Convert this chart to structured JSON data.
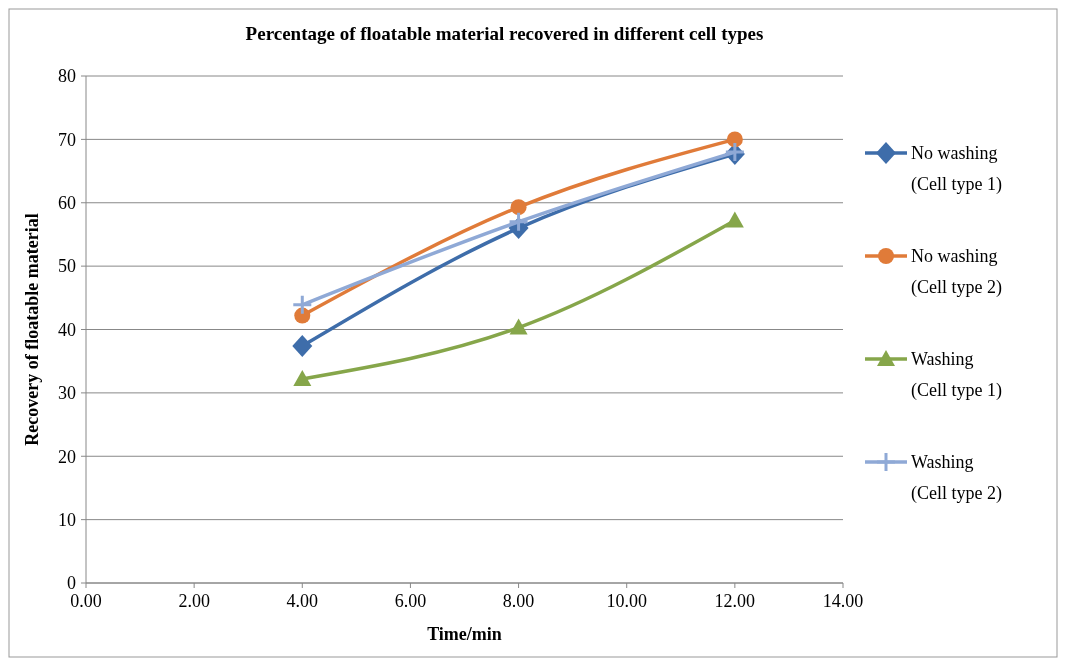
{
  "chart_data": {
    "type": "line",
    "title": "Percentage of floatable material recovered in different cell types",
    "xlabel": "Time/min",
    "ylabel": "Recovery of floatable material",
    "x": [
      4,
      8,
      12
    ],
    "series": [
      {
        "name": "No washing (Cell type 1)",
        "color": "#3e6daa",
        "marker": "diamond",
        "values": [
          37.4,
          56,
          67.7
        ]
      },
      {
        "name": "No washing (Cell type 2)",
        "color": "#e07b39",
        "marker": "circle",
        "values": [
          42.2,
          59.3,
          70
        ]
      },
      {
        "name": "Washing (Cell type 1)",
        "color": "#86a64a",
        "marker": "triangle",
        "values": [
          32.2,
          40.3,
          57.2
        ]
      },
      {
        "name": "Washing (Cell type 2)",
        "color": "#8fa9d6",
        "marker": "cross",
        "values": [
          43.9,
          57,
          68
        ]
      }
    ],
    "xlim": [
      0,
      14
    ],
    "xticks": [
      {
        "value": 0,
        "label": "0.00"
      },
      {
        "value": 2,
        "label": "2.00"
      },
      {
        "value": 4,
        "label": "4.00"
      },
      {
        "value": 6,
        "label": "6.00"
      },
      {
        "value": 8,
        "label": "8.00"
      },
      {
        "value": 10,
        "label": "10.00"
      },
      {
        "value": 12,
        "label": "12.00"
      },
      {
        "value": 14,
        "label": "14.00"
      }
    ],
    "ylim": [
      0,
      80
    ],
    "yticks": [
      0,
      10,
      20,
      30,
      40,
      50,
      60,
      70,
      80
    ],
    "grid": "y",
    "legend": "right",
    "line_style": "solid"
  }
}
